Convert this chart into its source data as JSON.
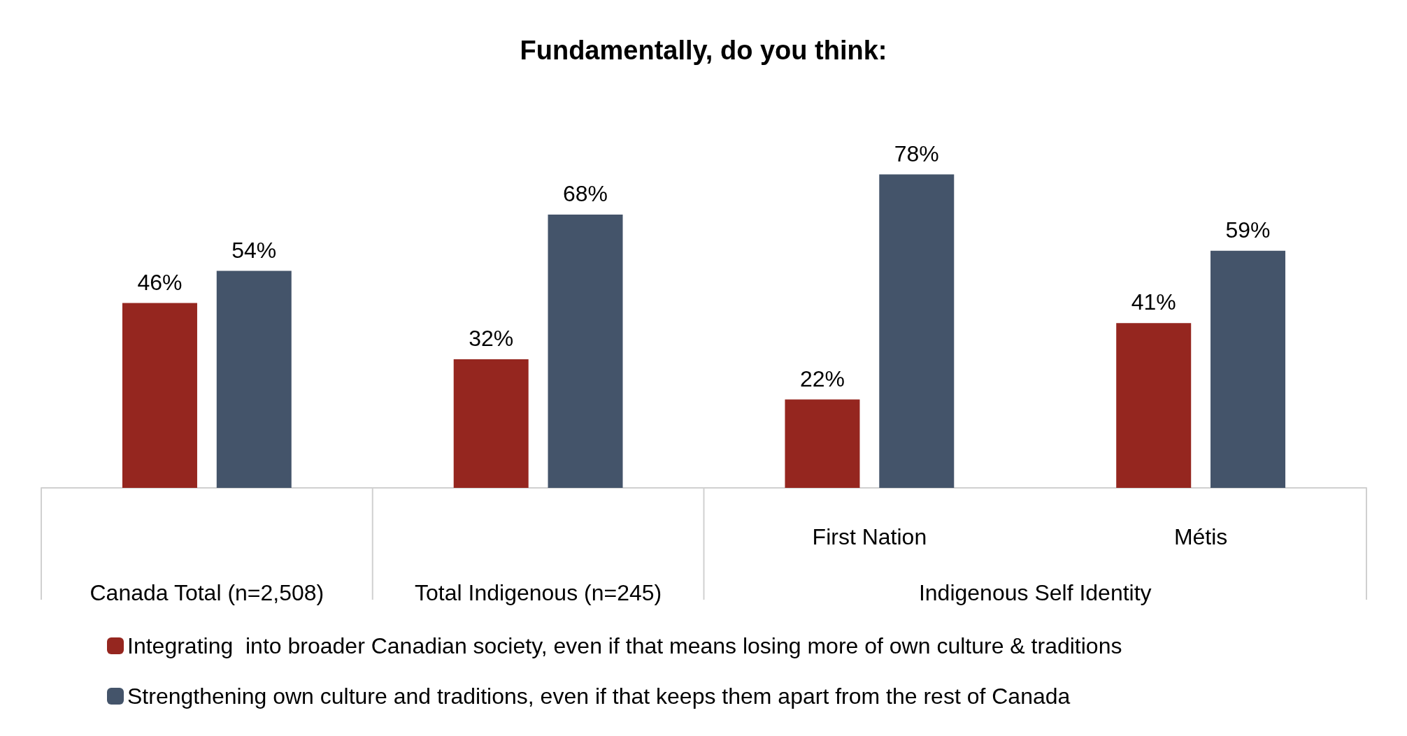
{
  "chart_data": {
    "type": "bar",
    "title": "Fundamentally, do you think:",
    "categories": [
      "Canada Total (n=2,508)",
      "Total Indigenous (n=245)",
      "First Nation",
      "Métis"
    ],
    "annotations": [
      "Indigenous Self Identity"
    ],
    "series": [
      {
        "name": "Integrating  into broader Canadian society, even if that means losing more of own culture & traditions",
        "color": "#95261f",
        "values": [
          46,
          32,
          22,
          41
        ],
        "value_labels": [
          "46%",
          "32%",
          "22%",
          "41%"
        ]
      },
      {
        "name": "Strengthening own culture and traditions, even if that keeps them apart from the rest of Canada",
        "color": "#44546a",
        "values": [
          54,
          68,
          78,
          59
        ],
        "value_labels": [
          "54%",
          "68%",
          "78%",
          "59%"
        ]
      }
    ],
    "legend": "bottom",
    "grid": false
  }
}
